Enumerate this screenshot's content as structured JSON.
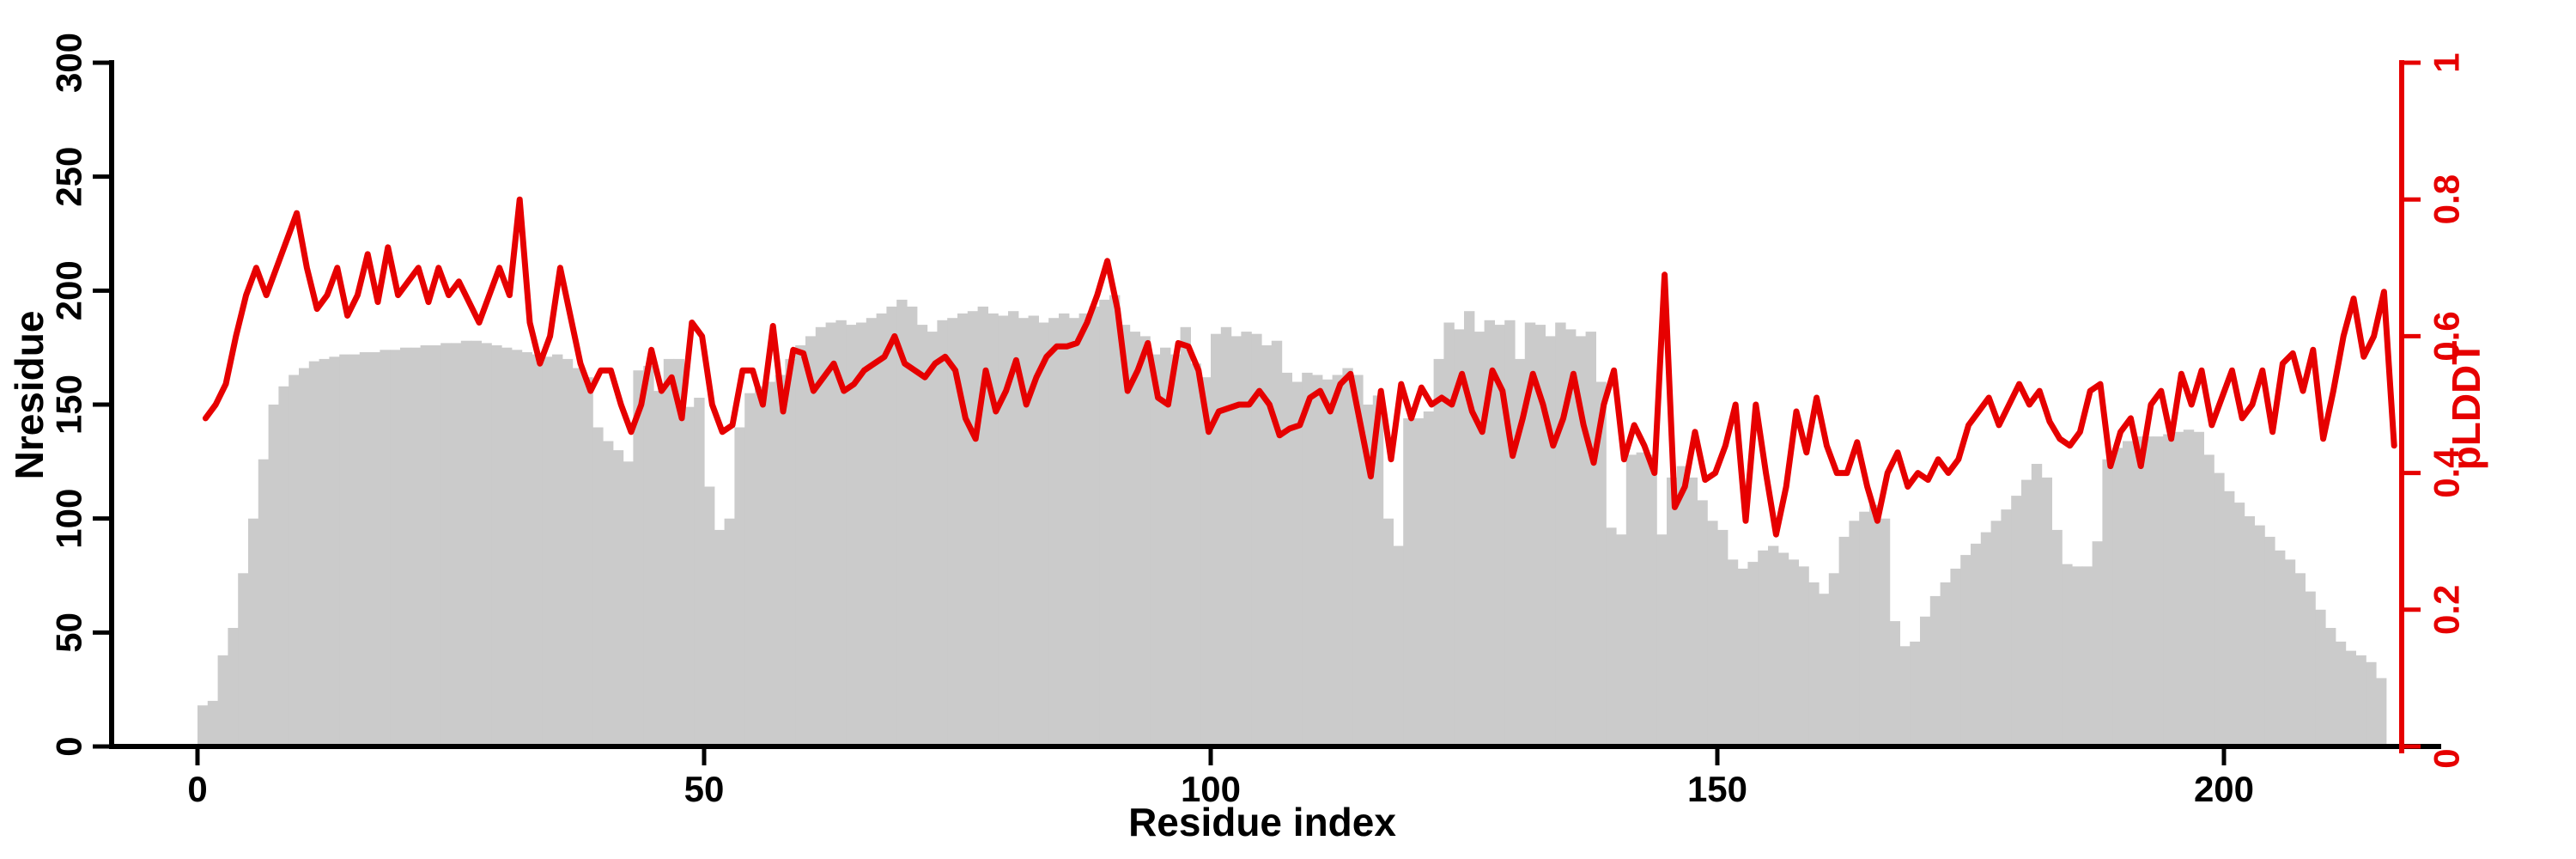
{
  "figure": {
    "background": "#ffffff",
    "bar_color": "#cbcbcb",
    "line_color": "#e60000",
    "axis_color": "#000000"
  },
  "chart_data": {
    "type": "bar+line",
    "title": "",
    "xlabel": "Residue index",
    "ylabel_left": "Nresidue",
    "ylabel_right": "pLDDT",
    "x_ticks": [
      0,
      50,
      100,
      150,
      200
    ],
    "left_ticks": [
      0,
      50,
      100,
      150,
      200,
      250,
      300
    ],
    "right_ticks": [
      0,
      0.2,
      0.4,
      0.6,
      0.8,
      1
    ],
    "xlim": [
      -8.5,
      217.5
    ],
    "ylim_left": [
      0,
      300
    ],
    "ylim_right": [
      0,
      1
    ],
    "grid": false,
    "legend": "none",
    "series": [
      {
        "name": "Nresidue",
        "type": "bar",
        "axis": "left",
        "color": "#cbcbcb",
        "x_start": 0,
        "values": [
          18,
          20,
          40,
          52,
          76,
          100,
          126,
          150,
          158,
          163,
          166,
          169,
          170,
          171,
          172,
          172,
          173,
          173,
          174,
          174,
          175,
          175,
          176,
          176,
          177,
          177,
          178,
          178,
          177,
          176,
          175,
          174,
          173,
          172,
          171,
          172,
          170,
          166,
          162,
          140,
          134,
          130,
          125,
          165,
          167,
          156,
          170,
          170,
          149,
          153,
          114,
          95,
          100,
          140,
          155,
          158,
          160,
          163,
          170,
          176,
          180,
          184,
          186,
          187,
          185,
          186,
          188,
          190,
          193,
          196,
          193,
          185,
          182,
          187,
          188,
          190,
          191,
          193,
          190,
          189,
          191,
          188,
          189,
          186,
          188,
          190,
          188,
          190,
          193,
          196,
          198,
          185,
          182,
          180,
          172,
          175,
          172,
          184,
          168,
          162,
          181,
          184,
          180,
          182,
          181,
          176,
          178,
          164,
          160,
          164,
          163,
          161,
          163,
          166,
          163,
          150,
          154,
          100,
          88,
          144,
          144,
          147,
          170,
          186,
          183,
          191,
          182,
          187,
          185,
          187,
          170,
          186,
          185,
          180,
          186,
          183,
          180,
          182,
          160,
          96,
          93,
          128,
          129,
          128,
          93,
          118,
          123,
          118,
          108,
          99,
          95,
          82,
          78,
          81,
          86,
          88,
          85,
          82,
          79,
          72,
          67,
          76,
          92,
          99,
          103,
          106,
          100,
          55,
          44,
          46,
          57,
          66,
          72,
          78,
          84,
          89,
          94,
          99,
          104,
          110,
          117,
          124,
          118,
          95,
          80,
          79,
          79,
          90,
          126,
          131,
          134,
          136,
          136,
          136,
          137,
          138,
          139,
          138,
          128,
          120,
          112,
          107,
          101,
          97,
          92,
          86,
          82,
          76,
          68,
          60,
          52,
          46,
          42,
          40,
          37,
          30
        ]
      },
      {
        "name": "pLDDT",
        "type": "line",
        "axis": "right",
        "color": "#e60000",
        "x_start": 0,
        "values": [
          0.48,
          0.5,
          0.53,
          0.6,
          0.66,
          0.7,
          0.66,
          0.7,
          0.74,
          0.78,
          0.7,
          0.64,
          0.66,
          0.7,
          0.63,
          0.66,
          0.72,
          0.65,
          0.73,
          0.66,
          0.68,
          0.7,
          0.65,
          0.7,
          0.66,
          0.68,
          0.65,
          0.62,
          0.66,
          0.7,
          0.66,
          0.8,
          0.62,
          0.56,
          0.6,
          0.7,
          0.63,
          0.56,
          0.52,
          0.55,
          0.55,
          0.5,
          0.46,
          0.5,
          0.58,
          0.52,
          0.54,
          0.48,
          0.62,
          0.6,
          0.5,
          0.46,
          0.47,
          0.55,
          0.55,
          0.5,
          0.615,
          0.49,
          0.58,
          0.575,
          0.52,
          0.54,
          0.56,
          0.52,
          0.53,
          0.55,
          0.56,
          0.57,
          0.6,
          0.56,
          0.55,
          0.54,
          0.56,
          0.57,
          0.55,
          0.48,
          0.45,
          0.55,
          0.49,
          0.52,
          0.565,
          0.5,
          0.54,
          0.57,
          0.585,
          0.585,
          0.59,
          0.62,
          0.66,
          0.71,
          0.64,
          0.52,
          0.55,
          0.59,
          0.51,
          0.5,
          0.59,
          0.585,
          0.55,
          0.46,
          0.49,
          0.495,
          0.5,
          0.5,
          0.52,
          0.5,
          0.455,
          0.465,
          0.47,
          0.51,
          0.52,
          0.49,
          0.53,
          0.545,
          0.47,
          0.395,
          0.52,
          0.42,
          0.53,
          0.48,
          0.525,
          0.5,
          0.51,
          0.5,
          0.545,
          0.49,
          0.46,
          0.55,
          0.52,
          0.425,
          0.48,
          0.545,
          0.5,
          0.44,
          0.48,
          0.545,
          0.47,
          0.415,
          0.5,
          0.55,
          0.42,
          0.47,
          0.44,
          0.4,
          0.69,
          0.35,
          0.38,
          0.46,
          0.39,
          0.4,
          0.44,
          0.5,
          0.33,
          0.5,
          0.4,
          0.31,
          0.38,
          0.49,
          0.43,
          0.51,
          0.44,
          0.4,
          0.4,
          0.445,
          0.38,
          0.33,
          0.4,
          0.43,
          0.38,
          0.4,
          0.39,
          0.42,
          0.4,
          0.42,
          0.47,
          0.49,
          0.51,
          0.47,
          0.5,
          0.53,
          0.5,
          0.52,
          0.475,
          0.45,
          0.44,
          0.46,
          0.52,
          0.53,
          0.41,
          0.46,
          0.48,
          0.41,
          0.5,
          0.52,
          0.45,
          0.545,
          0.5,
          0.55,
          0.47,
          0.51,
          0.55,
          0.48,
          0.5,
          0.55,
          0.46,
          0.56,
          0.575,
          0.52,
          0.58,
          0.45,
          0.52,
          0.6,
          0.655,
          0.57,
          0.6,
          0.665,
          0.44
        ]
      }
    ]
  }
}
